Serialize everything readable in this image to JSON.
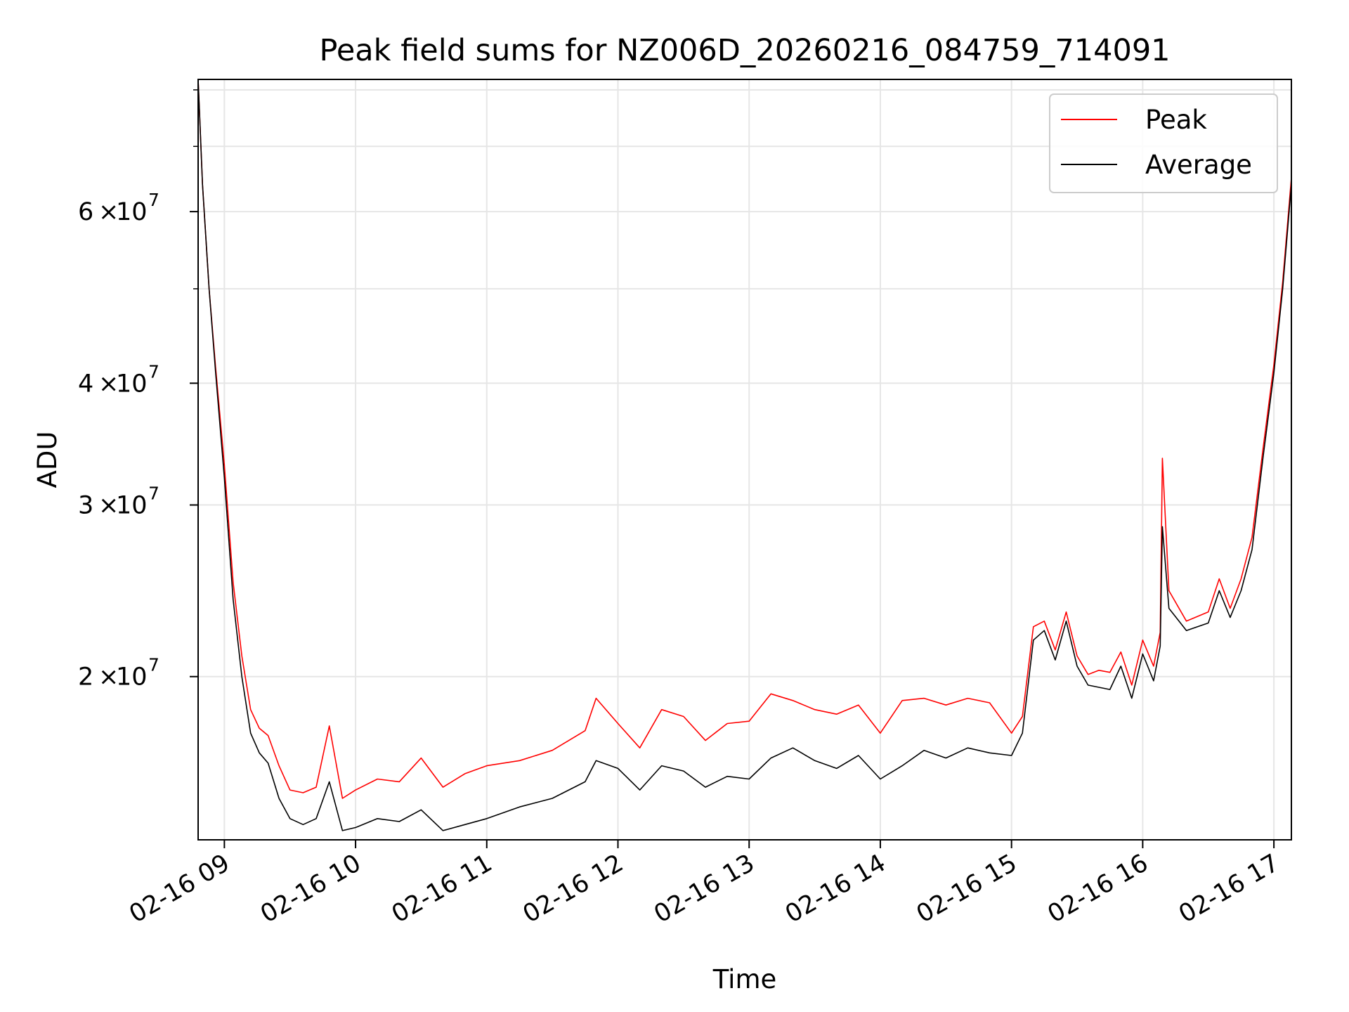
{
  "chart_data": {
    "type": "line",
    "title": "Peak field sums for NZ006D_20260216_084759_714091",
    "xlabel": "Time",
    "ylabel": "ADU",
    "y_scale": "log",
    "grid": true,
    "legend_placement": "top-right",
    "xlim": [
      "2026-02-16 08:48",
      "2026-02-16 17:08"
    ],
    "ylim": [
      13600000,
      82000000
    ],
    "x_ticks": [
      {
        "value": "2026-02-16 09:00",
        "label": "02-16 09"
      },
      {
        "value": "2026-02-16 10:00",
        "label": "02-16 10"
      },
      {
        "value": "2026-02-16 11:00",
        "label": "02-16 11"
      },
      {
        "value": "2026-02-16 12:00",
        "label": "02-16 12"
      },
      {
        "value": "2026-02-16 13:00",
        "label": "02-16 13"
      },
      {
        "value": "2026-02-16 14:00",
        "label": "02-16 14"
      },
      {
        "value": "2026-02-16 15:00",
        "label": "02-16 15"
      },
      {
        "value": "2026-02-16 16:00",
        "label": "02-16 16"
      },
      {
        "value": "2026-02-16 17:00",
        "label": "02-16 17"
      }
    ],
    "y_ticks": [
      {
        "value": 20000000,
        "mantissa": "2",
        "base": "10",
        "exp": "7"
      },
      {
        "value": 30000000,
        "mantissa": "3",
        "base": "10",
        "exp": "7"
      },
      {
        "value": 40000000,
        "mantissa": "4",
        "base": "10",
        "exp": "7"
      },
      {
        "value": 60000000,
        "mantissa": "6",
        "base": "10",
        "exp": "7"
      }
    ],
    "y_minor_ticks": [
      50000000,
      70000000,
      80000000
    ],
    "series": [
      {
        "name": "Peak",
        "color": "#ff0000"
      },
      {
        "name": "Average",
        "color": "#000000"
      }
    ],
    "x": [
      "2026-02-16 08:48",
      "2026-02-16 08:50",
      "2026-02-16 08:53",
      "2026-02-16 08:56",
      "2026-02-16 09:00",
      "2026-02-16 09:04",
      "2026-02-16 09:08",
      "2026-02-16 09:12",
      "2026-02-16 09:16",
      "2026-02-16 09:20",
      "2026-02-16 09:25",
      "2026-02-16 09:30",
      "2026-02-16 09:36",
      "2026-02-16 09:42",
      "2026-02-16 09:48",
      "2026-02-16 09:54",
      "2026-02-16 10:00",
      "2026-02-16 10:10",
      "2026-02-16 10:20",
      "2026-02-16 10:30",
      "2026-02-16 10:40",
      "2026-02-16 10:50",
      "2026-02-16 11:00",
      "2026-02-16 11:15",
      "2026-02-16 11:30",
      "2026-02-16 11:45",
      "2026-02-16 11:50",
      "2026-02-16 12:00",
      "2026-02-16 12:10",
      "2026-02-16 12:20",
      "2026-02-16 12:30",
      "2026-02-16 12:40",
      "2026-02-16 12:50",
      "2026-02-16 13:00",
      "2026-02-16 13:10",
      "2026-02-16 13:20",
      "2026-02-16 13:30",
      "2026-02-16 13:40",
      "2026-02-16 13:50",
      "2026-02-16 14:00",
      "2026-02-16 14:10",
      "2026-02-16 14:20",
      "2026-02-16 14:30",
      "2026-02-16 14:40",
      "2026-02-16 14:50",
      "2026-02-16 15:00",
      "2026-02-16 15:05",
      "2026-02-16 15:10",
      "2026-02-16 15:15",
      "2026-02-16 15:20",
      "2026-02-16 15:25",
      "2026-02-16 15:30",
      "2026-02-16 15:35",
      "2026-02-16 15:40",
      "2026-02-16 15:45",
      "2026-02-16 15:50",
      "2026-02-16 15:55",
      "2026-02-16 16:00",
      "2026-02-16 16:05",
      "2026-02-16 16:08",
      "2026-02-16 16:09",
      "2026-02-16 16:12",
      "2026-02-16 16:20",
      "2026-02-16 16:30",
      "2026-02-16 16:35",
      "2026-02-16 16:40",
      "2026-02-16 16:45",
      "2026-02-16 16:50",
      "2026-02-16 16:55",
      "2026-02-16 17:00",
      "2026-02-16 17:04",
      "2026-02-16 17:08"
    ],
    "average": [
      82000000,
      64000000,
      50000000,
      41000000,
      32000000,
      24000000,
      20000000,
      17500000,
      16700000,
      16300000,
      15000000,
      14300000,
      14100000,
      14300000,
      15600000,
      13900000,
      14000000,
      14300000,
      14200000,
      14600000,
      13900000,
      14100000,
      14300000,
      14700000,
      15000000,
      15600000,
      16400000,
      16100000,
      15300000,
      16200000,
      16000000,
      15400000,
      15800000,
      15700000,
      16500000,
      16900000,
      16400000,
      16100000,
      16600000,
      15700000,
      16200000,
      16800000,
      16500000,
      16900000,
      16700000,
      16600000,
      17500000,
      21800000,
      22300000,
      20800000,
      22800000,
      20500000,
      19600000,
      19500000,
      19400000,
      20500000,
      19000000,
      21100000,
      19800000,
      21500000,
      28500000,
      23500000,
      22300000,
      22700000,
      24500000,
      23000000,
      24500000,
      27000000,
      33500000,
      41000000,
      50000000,
      64000000
    ],
    "peak": [
      82000000,
      64000000,
      50000000,
      41500000,
      33000000,
      25000000,
      21000000,
      18500000,
      17700000,
      17400000,
      16200000,
      15300000,
      15200000,
      15400000,
      17800000,
      15000000,
      15300000,
      15700000,
      15600000,
      16500000,
      15400000,
      15900000,
      16200000,
      16400000,
      16800000,
      17600000,
      19000000,
      17900000,
      16900000,
      18500000,
      18200000,
      17200000,
      17900000,
      18000000,
      19200000,
      18900000,
      18500000,
      18300000,
      18700000,
      17500000,
      18900000,
      19000000,
      18700000,
      19000000,
      18800000,
      17500000,
      18200000,
      22500000,
      22800000,
      21300000,
      23300000,
      21000000,
      20100000,
      20300000,
      20200000,
      21200000,
      19600000,
      21800000,
      20500000,
      22200000,
      33500000,
      24500000,
      22800000,
      23300000,
      25200000,
      23500000,
      25200000,
      27800000,
      34200000,
      41800000,
      50800000,
      65000000
    ]
  }
}
